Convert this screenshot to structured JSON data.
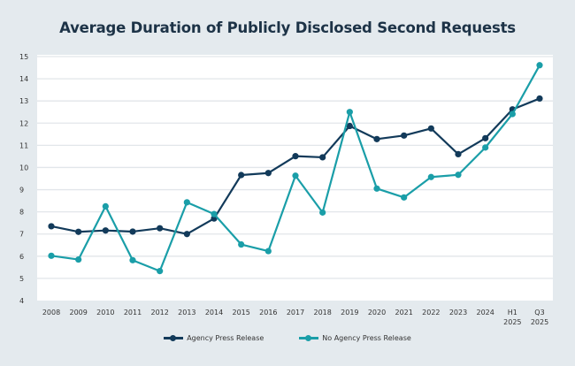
{
  "chart_data": {
    "type": "line",
    "title": "Average Duration of Publicly Disclosed Second Requests",
    "xlabel": "",
    "ylabel": "",
    "categories": [
      "2008",
      "2009",
      "2010",
      "2011",
      "2012",
      "2013",
      "2014",
      "2015",
      "2016",
      "2017",
      "2018",
      "2019",
      "2020",
      "2021",
      "2022",
      "2023",
      "2024",
      "H1 2025",
      "Q3 2025"
    ],
    "ylim": [
      4,
      15
    ],
    "yticks": [
      4,
      5,
      6,
      7,
      8,
      9,
      10,
      11,
      12,
      13,
      14,
      15
    ],
    "grid": true,
    "legend_position": "bottom",
    "series": [
      {
        "name": "Agency Press Release",
        "color": "#123a5a",
        "values": [
          7.35,
          7.1,
          7.16,
          7.11,
          7.26,
          7.0,
          7.7,
          9.66,
          9.75,
          10.51,
          10.46,
          11.87,
          11.28,
          11.44,
          11.76,
          10.6,
          11.32,
          12.62,
          13.11
        ]
      },
      {
        "name": "No Agency Press Release",
        "color": "#1a9ea8",
        "values": [
          6.02,
          5.85,
          8.25,
          5.82,
          5.33,
          8.43,
          7.9,
          6.53,
          6.23,
          9.63,
          7.97,
          12.5,
          9.05,
          8.65,
          9.57,
          9.67,
          10.9,
          12.41,
          14.61
        ]
      }
    ]
  }
}
